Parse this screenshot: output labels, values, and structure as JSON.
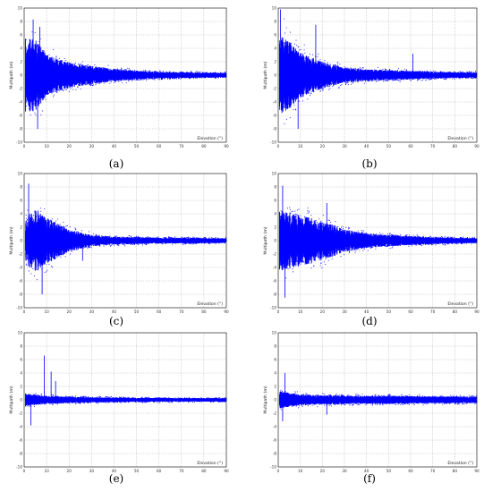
{
  "colors": {
    "series": "#0000ff",
    "grid": "#9a9a9a",
    "axes": "#000000"
  },
  "chart_data": [
    {
      "type": "scatter",
      "panel_label": "(a)",
      "ylabel": "Multipath (m)",
      "xlabel": "Elevation (°)",
      "xlim": [
        0,
        90
      ],
      "ylim": [
        -10,
        10
      ],
      "grid": true,
      "xticks": [
        "0",
        "10",
        "20",
        "30",
        "40",
        "50",
        "60",
        "70",
        "80",
        "90"
      ],
      "yticks": [
        "-10",
        "-8",
        "-6",
        "-4",
        "-2",
        "0",
        "2",
        "4",
        "6",
        "8",
        "10"
      ],
      "envelope": {
        "x": [
          0,
          5,
          10,
          20,
          30,
          40,
          50,
          60,
          70,
          80,
          90
        ],
        "amplitude": [
          6.5,
          6.5,
          3.5,
          2.3,
          1.6,
          1.1,
          0.8,
          0.6,
          0.5,
          0.45,
          0.4
        ]
      },
      "spikes": [
        {
          "x": 4,
          "y": 8.3
        },
        {
          "x": 7,
          "y": 7.2
        },
        {
          "x": 6,
          "y": -8.0
        }
      ]
    },
    {
      "type": "scatter",
      "panel_label": "(b)",
      "ylabel": "Multipath (m)",
      "xlabel": "Elevation (°)",
      "xlim": [
        0,
        90
      ],
      "ylim": [
        -10,
        10
      ],
      "grid": true,
      "xticks": [
        "0",
        "10",
        "20",
        "30",
        "40",
        "50",
        "60",
        "70",
        "80",
        "90"
      ],
      "yticks": [
        "-10",
        "-8",
        "-6",
        "-4",
        "-2",
        "0",
        "2",
        "4",
        "6",
        "8",
        "10"
      ],
      "envelope": {
        "x": [
          0,
          5,
          10,
          20,
          30,
          40,
          50,
          60,
          70,
          80,
          90
        ],
        "amplitude": [
          7.0,
          6.0,
          4.0,
          2.3,
          1.4,
          1.0,
          0.9,
          0.75,
          0.6,
          0.5,
          0.45
        ]
      },
      "spikes": [
        {
          "x": 1,
          "y": 9.8
        },
        {
          "x": 17,
          "y": 7.5
        },
        {
          "x": 61,
          "y": 3.2
        },
        {
          "x": 9,
          "y": -8.0
        }
      ]
    },
    {
      "type": "scatter",
      "panel_label": "(c)",
      "ylabel": "Multipath (m)",
      "xlabel": "Elevation (°)",
      "xlim": [
        0,
        90
      ],
      "ylim": [
        -10,
        10
      ],
      "grid": true,
      "xticks": [
        "0",
        "10",
        "20",
        "30",
        "40",
        "50",
        "60",
        "70",
        "80",
        "90"
      ],
      "yticks": [
        "-10",
        "-8",
        "-6",
        "-4",
        "-2",
        "0",
        "2",
        "4",
        "6",
        "8",
        "10"
      ],
      "envelope": {
        "x": [
          0,
          5,
          10,
          20,
          30,
          40,
          50,
          60,
          70,
          80,
          90
        ],
        "amplitude": [
          4.0,
          5.5,
          4.0,
          2.0,
          1.0,
          0.7,
          0.6,
          0.5,
          0.5,
          0.45,
          0.4
        ]
      },
      "spikes": [
        {
          "x": 2,
          "y": 8.5
        },
        {
          "x": 8,
          "y": -8.0
        },
        {
          "x": 26,
          "y": -3.0
        }
      ]
    },
    {
      "type": "scatter",
      "panel_label": "(d)",
      "ylabel": "Multipath (m)",
      "xlabel": "Elevation (°)",
      "xlim": [
        0,
        90
      ],
      "ylim": [
        -10,
        10
      ],
      "grid": true,
      "xticks": [
        "0",
        "10",
        "20",
        "30",
        "40",
        "50",
        "60",
        "70",
        "80",
        "90"
      ],
      "yticks": [
        "-10",
        "-8",
        "-6",
        "-4",
        "-2",
        "0",
        "2",
        "4",
        "6",
        "8",
        "10"
      ],
      "envelope": {
        "x": [
          0,
          5,
          10,
          20,
          30,
          40,
          50,
          60,
          70,
          80,
          90
        ],
        "amplitude": [
          5.5,
          5.0,
          4.5,
          3.5,
          2.0,
          1.3,
          1.0,
          0.8,
          0.6,
          0.5,
          0.45
        ]
      },
      "spikes": [
        {
          "x": 2,
          "y": 8.2
        },
        {
          "x": 3,
          "y": -8.5
        },
        {
          "x": 22,
          "y": 5.6
        }
      ]
    },
    {
      "type": "scatter",
      "panel_label": "(e)",
      "ylabel": "Multipath (m)",
      "xlabel": "Elevation (°)",
      "xlim": [
        0,
        90
      ],
      "ylim": [
        -10,
        10
      ],
      "grid": true,
      "xticks": [
        "0",
        "10",
        "20",
        "30",
        "40",
        "50",
        "60",
        "70",
        "80",
        "90"
      ],
      "yticks": [
        "-10",
        "-8",
        "-6",
        "-4",
        "-2",
        "0",
        "2",
        "4",
        "6",
        "8",
        "10"
      ],
      "envelope": {
        "x": [
          0,
          5,
          10,
          20,
          30,
          40,
          50,
          60,
          70,
          80,
          90
        ],
        "amplitude": [
          1.2,
          0.9,
          0.7,
          0.55,
          0.45,
          0.4,
          0.35,
          0.35,
          0.3,
          0.3,
          0.3
        ]
      },
      "spikes": [
        {
          "x": 9,
          "y": 6.6
        },
        {
          "x": 12,
          "y": 4.2
        },
        {
          "x": 3,
          "y": -3.8
        },
        {
          "x": 14,
          "y": 2.8
        }
      ]
    },
    {
      "type": "scatter",
      "panel_label": "(f)",
      "ylabel": "Multipath (m)",
      "xlabel": "Elevation (°)",
      "xlim": [
        0,
        90
      ],
      "ylim": [
        -10,
        10
      ],
      "grid": true,
      "xticks": [
        "0",
        "10",
        "20",
        "30",
        "40",
        "50",
        "60",
        "70",
        "80",
        "90"
      ],
      "yticks": [
        "-10",
        "-8",
        "-6",
        "-4",
        "-2",
        "0",
        "2",
        "4",
        "6",
        "8",
        "10"
      ],
      "envelope": {
        "x": [
          0,
          5,
          10,
          20,
          30,
          40,
          50,
          60,
          70,
          80,
          90
        ],
        "amplitude": [
          1.6,
          1.2,
          1.0,
          0.8,
          0.75,
          0.7,
          0.7,
          0.65,
          0.6,
          0.6,
          0.55
        ]
      },
      "spikes": [
        {
          "x": 3,
          "y": 4.0
        },
        {
          "x": 2,
          "y": -3.2
        },
        {
          "x": 22,
          "y": -2.2
        }
      ]
    }
  ]
}
